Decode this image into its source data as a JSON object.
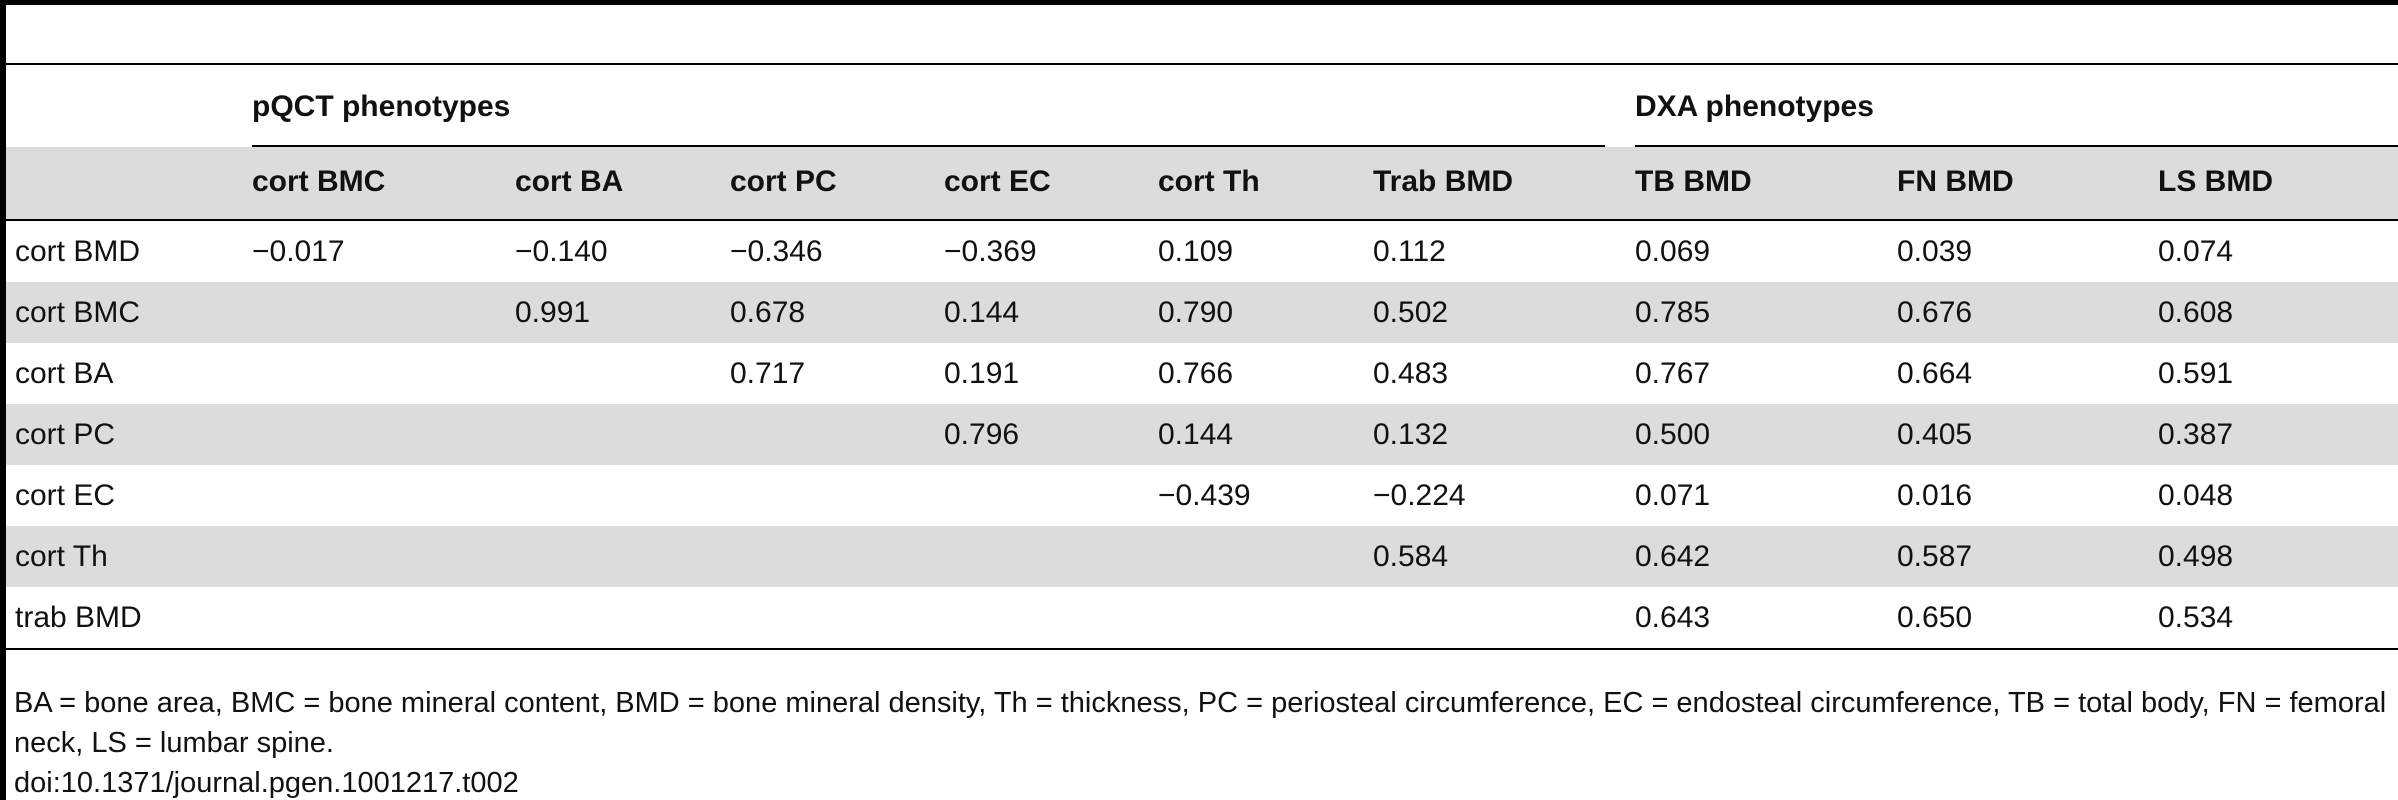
{
  "table": {
    "groups": [
      {
        "label": "pQCT phenotypes",
        "from": 1,
        "to": 6
      },
      {
        "label": "DXA phenotypes",
        "from": 7,
        "to": 9
      }
    ],
    "columns": [
      "cort BMC",
      "cort BA",
      "cort PC",
      "cort EC",
      "cort Th",
      "Trab BMD",
      "TB BMD",
      "FN BMD",
      "LS BMD"
    ],
    "rows": [
      [
        "cort BMD",
        "−0.017",
        "−0.140",
        "−0.346",
        "−0.369",
        "0.109",
        "0.112",
        "0.069",
        "0.039",
        "0.074"
      ],
      [
        "cort BMC",
        null,
        "0.991",
        "0.678",
        "0.144",
        "0.790",
        "0.502",
        "0.785",
        "0.676",
        "0.608"
      ],
      [
        "cort BA",
        null,
        null,
        "0.717",
        "0.191",
        "0.766",
        "0.483",
        "0.767",
        "0.664",
        "0.591"
      ],
      [
        "cort PC",
        null,
        null,
        null,
        "0.796",
        "0.144",
        "0.132",
        "0.500",
        "0.405",
        "0.387"
      ],
      [
        "cort EC",
        null,
        null,
        null,
        null,
        "−0.439",
        "−0.224",
        "0.071",
        "0.016",
        "0.048"
      ],
      [
        "cort Th",
        null,
        null,
        null,
        null,
        null,
        "0.584",
        "0.642",
        "0.587",
        "0.498"
      ],
      [
        "trab BMD",
        null,
        null,
        null,
        null,
        null,
        null,
        "0.643",
        "0.650",
        "0.534"
      ]
    ]
  },
  "footnote": "BA = bone area, BMC = bone mineral content, BMD = bone mineral density, Th = thickness, PC = periosteal circumference, EC = endosteal circumference, TB = total body, FN = femoral neck, LS = lumbar spine.",
  "doi": "doi:10.1371/journal.pgen.1001217.t002"
}
